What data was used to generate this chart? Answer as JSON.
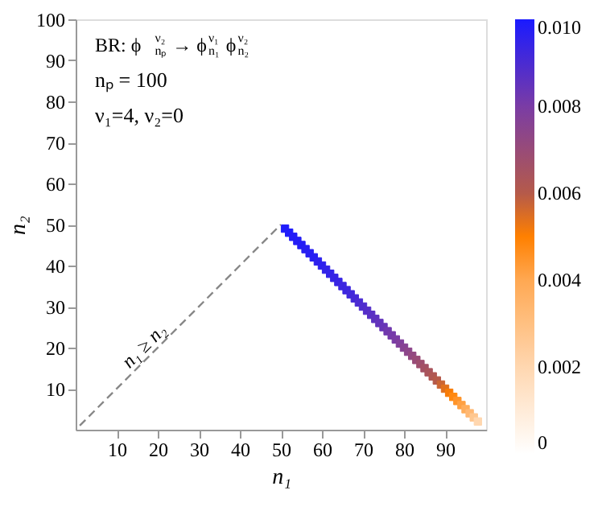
{
  "chart_data": {
    "type": "scatter",
    "title": "BR: ϕ$_{nₚ}$$^{ν₂}$→ ϕ$_{n₁}$$^{ν₁}$ϕ$_{n₂}$$^{ν₂}$",
    "xlabel": "n₁",
    "ylabel": "n₂",
    "series": [
      {
        "type": "scatter",
        "marker": "square",
        "x": [
          51,
          52,
          53,
          54,
          55,
          56,
          57,
          58,
          59,
          60,
          61,
          62,
          63,
          64,
          65,
          66,
          67,
          68,
          69,
          70,
          71,
          72,
          73,
          74,
          75,
          76,
          77,
          78,
          79,
          80,
          81,
          82,
          83,
          84,
          85,
          86,
          87,
          88,
          89,
          90,
          91,
          92,
          93,
          94,
          95,
          96,
          97,
          98
        ],
        "values": [
          49,
          48,
          47,
          46,
          45,
          44,
          43,
          42,
          41,
          40,
          39,
          38,
          37,
          36,
          35,
          34,
          33,
          32,
          31,
          30,
          29,
          28,
          27,
          26,
          25,
          24,
          23,
          22,
          21,
          20,
          19,
          18,
          17,
          16,
          15,
          14,
          13,
          12,
          11,
          10,
          9,
          8,
          7,
          6,
          5,
          4,
          3,
          2
        ],
        "colors": [
          "#1f1cfb",
          "#1f1cfb",
          "#241df6",
          "#241df6",
          "#241df6",
          "#281ff2",
          "#281ff2",
          "#281ff2",
          "#2d21ed",
          "#2d21ed",
          "#3223e9",
          "#3223e9",
          "#3724e4",
          "#3724e4",
          "#3c26e0",
          "#3c26e0",
          "#4028db",
          "#4529d7",
          "#4a2bd2",
          "#4f2dce",
          "#542ec9",
          "#5830c5",
          "#5d32c0",
          "#6234bc",
          "#6735b7",
          "#7039ae",
          "#753aaa",
          "#7a3ca5",
          "#803f9c",
          "#864293",
          "#8c458a",
          "#924881",
          "#984b78",
          "#9d4e6e",
          "#a35165",
          "#a9545c",
          "#af5753",
          "#b55a4a",
          "#cb6534",
          "#e1711e",
          "#f87c07",
          "#ff8810",
          "#ff9429",
          "#ffa042",
          "#ffad5b",
          "#ffb873",
          "#ffc78f",
          "#ffd7b0"
        ],
        "cvalues": [
          0.0099,
          0.0099,
          0.0098,
          0.0098,
          0.0098,
          0.0097,
          0.0097,
          0.0097,
          0.0096,
          0.0096,
          0.0095,
          0.0095,
          0.0094,
          0.0094,
          0.0093,
          0.0093,
          0.0092,
          0.0091,
          0.009,
          0.0089,
          0.0088,
          0.0087,
          0.0086,
          0.0085,
          0.0084,
          0.0082,
          0.0081,
          0.008,
          0.0078,
          0.0076,
          0.0074,
          0.0072,
          0.007,
          0.0068,
          0.0066,
          0.0064,
          0.0062,
          0.006,
          0.0057,
          0.0054,
          0.0051,
          0.0048,
          0.0045,
          0.0042,
          0.0038,
          0.0033,
          0.0027,
          0.002
        ]
      },
      {
        "type": "line",
        "color": "#888888",
        "line_style": "dashed",
        "x": [
          1,
          50
        ],
        "values": [
          1,
          50
        ]
      }
    ],
    "annotations": [
      "nₚ = 100",
      "ν₁=4, ν₂=0",
      {
        "text": "n₁ ≥ n₂",
        "x": 18,
        "y": 18
      }
    ],
    "xlim": [
      0,
      100
    ],
    "ylim": [
      0,
      100
    ],
    "xticks": [
      10,
      20,
      30,
      40,
      50,
      60,
      70,
      80,
      90
    ],
    "yticks": [
      10,
      20,
      30,
      40,
      50,
      60,
      70,
      80,
      90,
      100
    ],
    "clim": [
      0,
      0.01
    ],
    "cticks": [
      {
        "value": 0,
        "label": "0"
      },
      {
        "value": 0.002,
        "label": "0.002"
      },
      {
        "value": 0.004,
        "label": "0.004"
      },
      {
        "value": 0.006,
        "label": "0.006"
      },
      {
        "value": 0.008,
        "label": "0.008"
      },
      {
        "value": 0.01,
        "label": "0.010"
      }
    ],
    "grid": false
  }
}
